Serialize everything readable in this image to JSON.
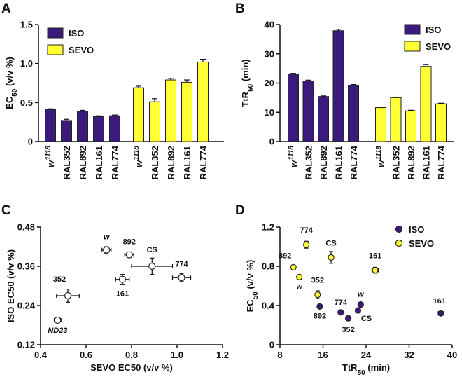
{
  "colors": {
    "iso": "#3a1a7a",
    "sevo": "#ffff33",
    "edge": "#222222"
  },
  "panels": {
    "a": "A",
    "b": "B",
    "c": "C",
    "d": "D"
  },
  "chart_data": [
    {
      "id": "A",
      "type": "bar",
      "ylabel": "EC50 (v/v %)",
      "ylim": [
        0,
        1.5
      ],
      "yticks": [
        "0",
        "0.5",
        "1.0",
        "1.5"
      ],
      "categories": [
        "w1118",
        "RAL352",
        "RAL892",
        "RAL161",
        "RAL774"
      ],
      "series": [
        {
          "name": "ISO",
          "values": [
            0.41,
            0.27,
            0.39,
            0.32,
            0.33
          ],
          "errors": [
            0.01,
            0.015,
            0.01,
            0.01,
            0.01
          ]
        },
        {
          "name": "SEVO",
          "values": [
            0.69,
            0.51,
            0.79,
            0.76,
            1.02
          ],
          "errors": [
            0.02,
            0.04,
            0.02,
            0.03,
            0.035
          ]
        }
      ],
      "legend": [
        "ISO",
        "SEVO"
      ]
    },
    {
      "id": "B",
      "type": "bar",
      "ylabel": "TtR50 (min)",
      "ylim": [
        0,
        40
      ],
      "yticks": [
        "0",
        "10",
        "20",
        "30",
        "40"
      ],
      "categories": [
        "w1118",
        "RAL352",
        "RAL892",
        "RAL161",
        "RAL774"
      ],
      "series": [
        {
          "name": "ISO",
          "values": [
            23.0,
            20.7,
            15.4,
            37.9,
            19.3
          ],
          "errors": [
            0.3,
            0.3,
            0.2,
            0.5,
            0.2
          ]
        },
        {
          "name": "SEVO",
          "values": [
            11.6,
            15.0,
            10.5,
            25.7,
            12.9
          ],
          "errors": [
            0.2,
            0.2,
            0.2,
            0.6,
            0.2
          ]
        }
      ],
      "legend": [
        "ISO",
        "SEVO"
      ]
    },
    {
      "id": "C",
      "type": "scatter",
      "xlabel": "SEVO EC50 (v/v %)",
      "ylabel": "ISO EC50 (v/v %)",
      "xlim": [
        0.4,
        1.2
      ],
      "ylim": [
        0.12,
        0.48
      ],
      "xticks": [
        "0.4",
        "0.6",
        "0.8",
        "1.0",
        "1.2"
      ],
      "yticks": [
        "0.12",
        "0.24",
        "0.36",
        "0.48"
      ],
      "points": [
        {
          "label": "w",
          "italic": true,
          "x": 0.69,
          "y": 0.41,
          "xerr": 0.02,
          "yerr": 0.01,
          "lx": 0,
          "ly": -15
        },
        {
          "label": "892",
          "italic": false,
          "x": 0.79,
          "y": 0.395,
          "xerr": 0.02,
          "yerr": 0.008,
          "lx": 0,
          "ly": -15
        },
        {
          "label": "CS",
          "italic": false,
          "x": 0.89,
          "y": 0.36,
          "xerr": 0.09,
          "yerr": 0.025,
          "lx": 0,
          "ly": -20
        },
        {
          "label": "774",
          "italic": false,
          "x": 1.02,
          "y": 0.325,
          "xerr": 0.04,
          "yerr": 0.012,
          "lx": 0,
          "ly": -16
        },
        {
          "label": "161",
          "italic": false,
          "x": 0.76,
          "y": 0.32,
          "xerr": 0.03,
          "yerr": 0.015,
          "lx": 0,
          "ly": 24
        },
        {
          "label": "352",
          "italic": false,
          "x": 0.52,
          "y": 0.27,
          "xerr": 0.05,
          "yerr": 0.02,
          "lx": -12,
          "ly": -20
        },
        {
          "label": "ND23",
          "italic": true,
          "x": 0.475,
          "y": 0.195,
          "xerr": 0.015,
          "yerr": 0.005,
          "lx": 0,
          "ly": 18
        }
      ]
    },
    {
      "id": "D",
      "type": "scatter",
      "xlabel": "TtR50 (min)",
      "ylabel": "EC50 (v/v %)",
      "xlim": [
        8,
        40
      ],
      "ylim": [
        0,
        1.2
      ],
      "xticks": [
        "8",
        "16",
        "24",
        "32",
        "40"
      ],
      "yticks": [
        "0",
        "0.4",
        "0.8",
        "1.2"
      ],
      "legend": [
        "ISO",
        "SEVO"
      ],
      "series": [
        {
          "name": "ISO",
          "points": [
            {
              "label": "892",
              "italic": false,
              "x": 15.4,
              "y": 0.39,
              "xerr": 0.2,
              "yerr": 0.01,
              "lx": 0,
              "ly": 17
            },
            {
              "label": "774",
              "italic": false,
              "x": 19.3,
              "y": 0.33,
              "xerr": 0.2,
              "yerr": 0.01,
              "lx": 0,
              "ly": -11
            },
            {
              "label": "352",
              "italic": false,
              "x": 20.7,
              "y": 0.27,
              "xerr": 0.3,
              "yerr": 0.015,
              "lx": 0,
              "ly": 20
            },
            {
              "label": "CS",
              "italic": false,
              "x": 22.5,
              "y": 0.35,
              "xerr": 0.4,
              "yerr": 0.01,
              "lx": 12,
              "ly": 15
            },
            {
              "label": "w",
              "italic": true,
              "x": 23.0,
              "y": 0.41,
              "xerr": 0.3,
              "yerr": 0.01,
              "lx": 0,
              "ly": -11
            },
            {
              "label": "161",
              "italic": false,
              "x": 37.9,
              "y": 0.32,
              "xerr": 0.5,
              "yerr": 0.01,
              "lx": -2,
              "ly": -14
            }
          ]
        },
        {
          "name": "SEVO",
          "points": [
            {
              "label": "774",
              "italic": false,
              "x": 12.9,
              "y": 1.02,
              "xerr": 0.3,
              "yerr": 0.035,
              "lx": 0,
              "ly": -17
            },
            {
              "label": "892",
              "italic": false,
              "x": 10.5,
              "y": 0.79,
              "xerr": 0.2,
              "yerr": 0.02,
              "lx": -12,
              "ly": -13
            },
            {
              "label": "w",
              "italic": true,
              "x": 11.6,
              "y": 0.69,
              "xerr": 0.2,
              "yerr": 0.02,
              "lx": 0,
              "ly": 17
            },
            {
              "label": "352",
              "italic": false,
              "x": 15.0,
              "y": 0.51,
              "xerr": 0.3,
              "yerr": 0.04,
              "lx": 0,
              "ly": -17
            },
            {
              "label": "CS",
              "italic": false,
              "x": 17.5,
              "y": 0.89,
              "xerr": 0.4,
              "yerr": 0.06,
              "lx": 0,
              "ly": -17
            },
            {
              "label": "161",
              "italic": false,
              "x": 25.7,
              "y": 0.76,
              "xerr": 0.6,
              "yerr": 0.03,
              "lx": 0,
              "ly": -17
            }
          ]
        }
      ]
    }
  ]
}
